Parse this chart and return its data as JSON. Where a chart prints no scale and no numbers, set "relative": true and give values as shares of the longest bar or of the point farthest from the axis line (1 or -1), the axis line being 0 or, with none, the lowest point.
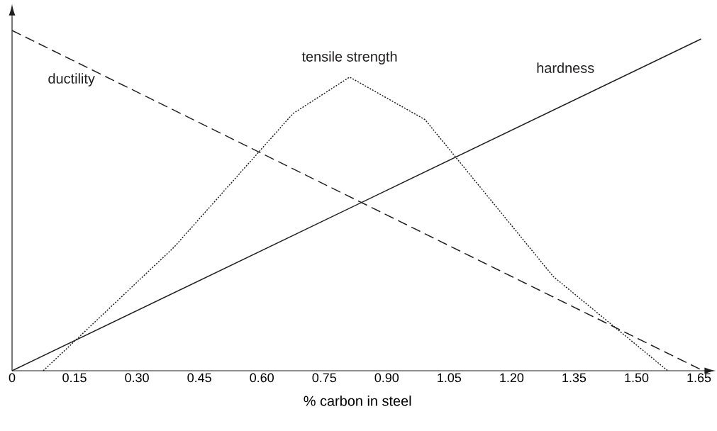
{
  "chart_data": {
    "type": "line",
    "xlabel": "% carbon in steel",
    "relative": true,
    "xlim": [
      0,
      1.66
    ],
    "xticks": [
      {
        "value": 0,
        "label": "0"
      },
      {
        "value": 0.15,
        "label": "0.15"
      },
      {
        "value": 0.3,
        "label": "0.30"
      },
      {
        "value": 0.45,
        "label": "0.45"
      },
      {
        "value": 0.6,
        "label": "0.60"
      },
      {
        "value": 0.75,
        "label": "0.75"
      },
      {
        "value": 0.9,
        "label": "0.90"
      },
      {
        "value": 1.05,
        "label": "1.05"
      },
      {
        "value": 1.2,
        "label": "1.20"
      },
      {
        "value": 1.35,
        "label": "1.35"
      },
      {
        "value": 1.5,
        "label": "1.50"
      },
      {
        "value": 1.65,
        "label": "1.65"
      }
    ],
    "marker": "none",
    "series": [
      {
        "name": "ductility",
        "color": "#231f20",
        "line_style": "dashed",
        "x": [
          0,
          1.66
        ],
        "values": [
          1,
          0
        ]
      },
      {
        "name": "tensile strength",
        "color": "#231f20",
        "line_style": "dotted",
        "x": [
          0.075,
          0.389,
          0.675,
          0.811,
          0.992,
          1.3,
          1.575
        ],
        "values": [
          0,
          0.363,
          0.756,
          0.863,
          0.738,
          0.277,
          0
        ]
      },
      {
        "name": "hardness",
        "color": "#231f20",
        "line_style": "solid",
        "x": [
          0,
          1.655
        ],
        "values": [
          0,
          0.975
        ]
      }
    ]
  }
}
